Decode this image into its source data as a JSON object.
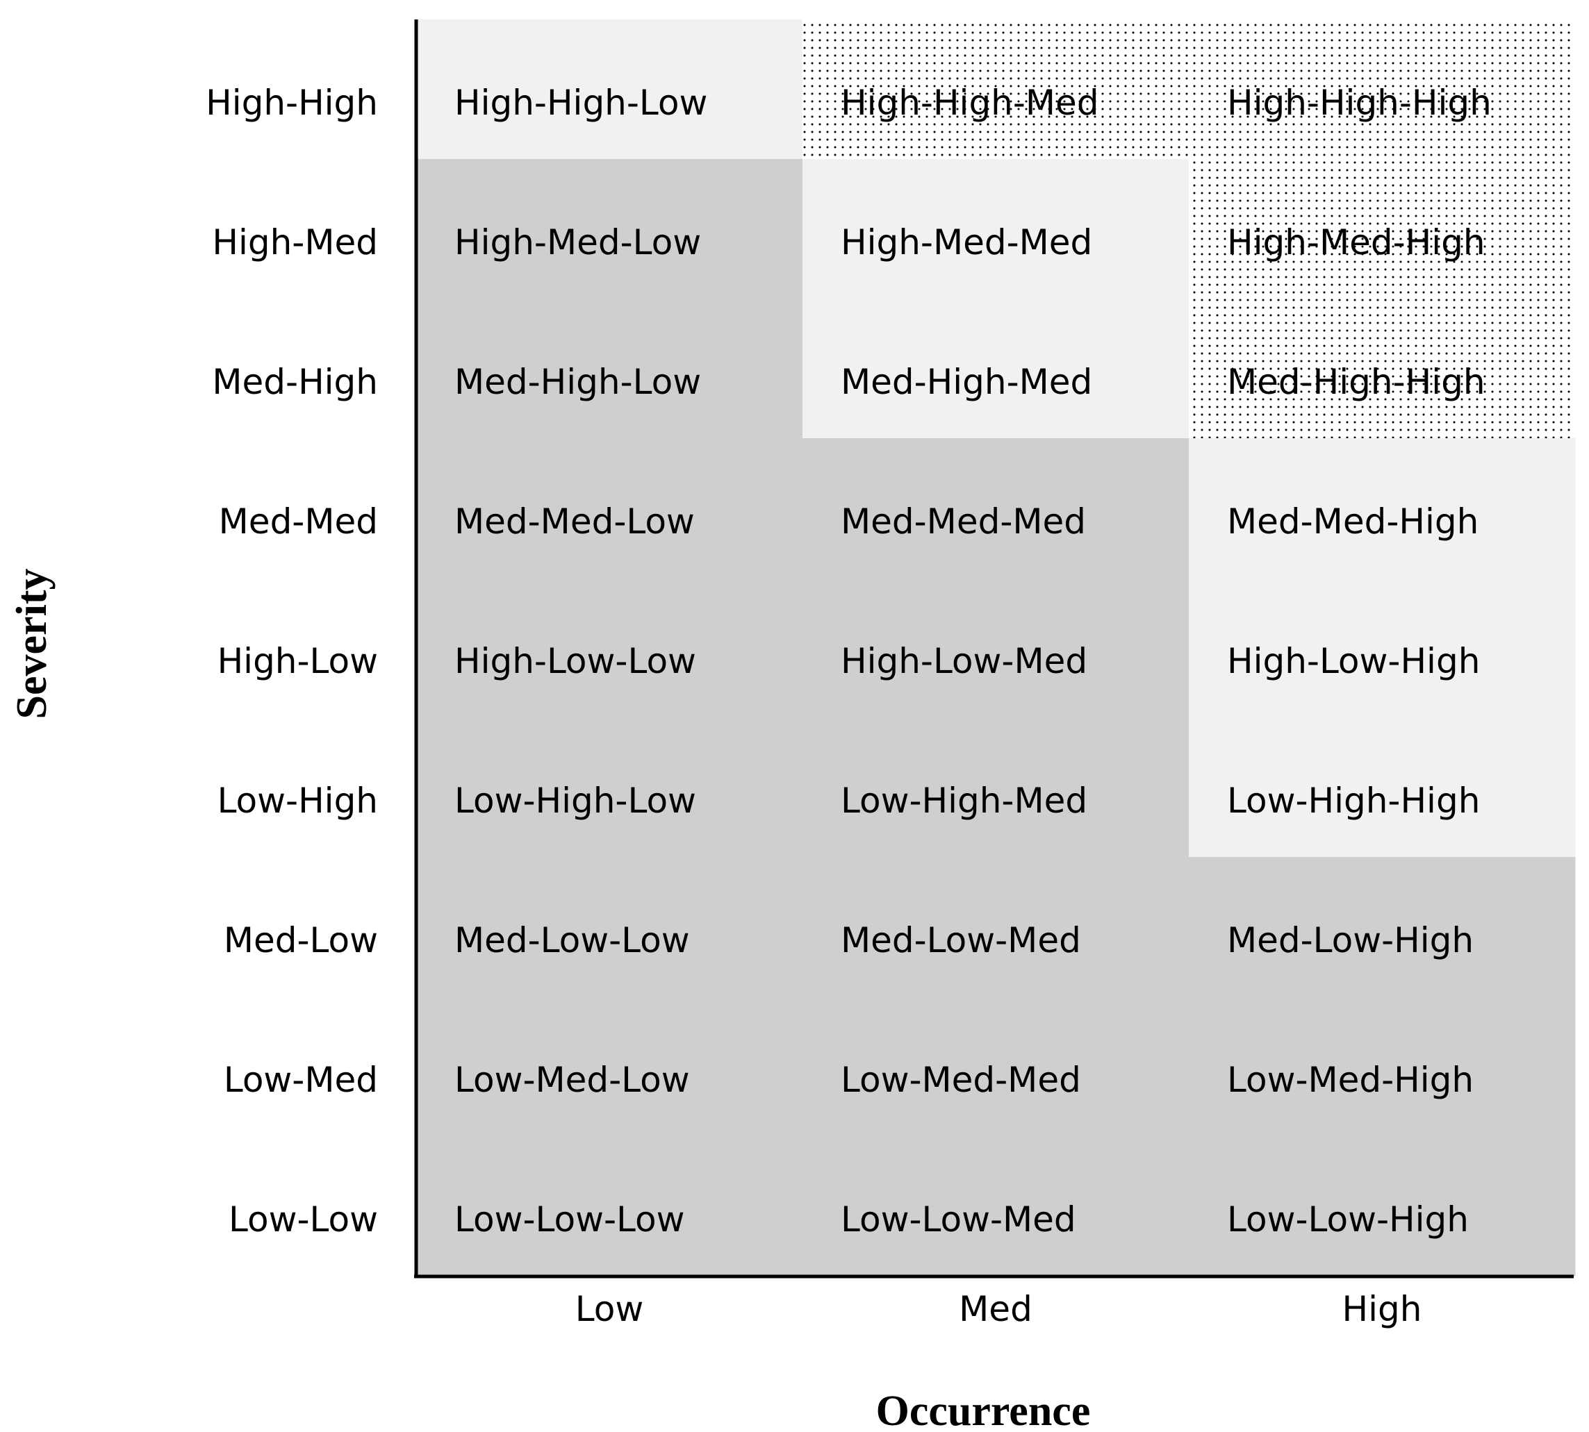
{
  "axes": {
    "x_title": "Occurrence",
    "y_title": "Severity",
    "x_categories": [
      "Low",
      "Med",
      "High"
    ],
    "y_categories": [
      "High-High",
      "High-Med",
      "Med-High",
      "Med-Med",
      "High-Low",
      "Low-High",
      "Med-Low",
      "Low-Med",
      "Low-Low"
    ]
  },
  "zones": {
    "low_color": "#d0cecf",
    "medium_color": "#f1f1f1",
    "high_color": "#ffffff",
    "high_pattern": "dotted"
  },
  "cells": [
    [
      {
        "text": "High-High-Low",
        "zone": "medium"
      },
      {
        "text": "High-High-Med",
        "zone": "high"
      },
      {
        "text": "High-High-High",
        "zone": "high"
      }
    ],
    [
      {
        "text": "High-Med-Low",
        "zone": "low"
      },
      {
        "text": "High-Med-Med",
        "zone": "medium"
      },
      {
        "text": "High-Med-High",
        "zone": "high"
      }
    ],
    [
      {
        "text": "Med-High-Low",
        "zone": "low"
      },
      {
        "text": "Med-High-Med",
        "zone": "medium"
      },
      {
        "text": "Med-High-High",
        "zone": "high"
      }
    ],
    [
      {
        "text": "Med-Med-Low",
        "zone": "low"
      },
      {
        "text": "Med-Med-Med",
        "zone": "low"
      },
      {
        "text": "Med-Med-High",
        "zone": "medium"
      }
    ],
    [
      {
        "text": "High-Low-Low",
        "zone": "low"
      },
      {
        "text": "High-Low-Med",
        "zone": "low"
      },
      {
        "text": "High-Low-High",
        "zone": "medium"
      }
    ],
    [
      {
        "text": "Low-High-Low",
        "zone": "low"
      },
      {
        "text": "Low-High-Med",
        "zone": "low"
      },
      {
        "text": "Low-High-High",
        "zone": "medium"
      }
    ],
    [
      {
        "text": "Med-Low-Low",
        "zone": "low"
      },
      {
        "text": "Med-Low-Med",
        "zone": "low"
      },
      {
        "text": "Med-Low-High",
        "zone": "low"
      }
    ],
    [
      {
        "text": "Low-Med-Low",
        "zone": "low"
      },
      {
        "text": "Low-Med-Med",
        "zone": "low"
      },
      {
        "text": "Low-Med-High",
        "zone": "low"
      }
    ],
    [
      {
        "text": "Low-Low-Low",
        "zone": "low"
      },
      {
        "text": "Low-Low-Med",
        "zone": "low"
      },
      {
        "text": "Low-Low-High",
        "zone": "low"
      }
    ]
  ]
}
